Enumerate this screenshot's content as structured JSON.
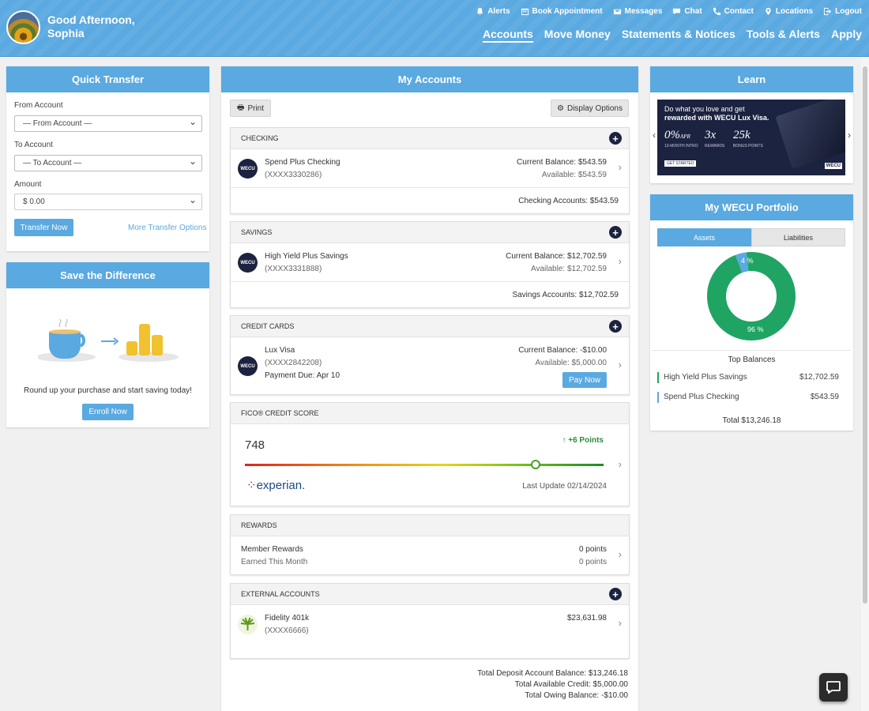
{
  "header": {
    "greeting_line1": "Good Afternoon,",
    "greeting_line2": "Sophia",
    "top_links": [
      {
        "label": "Alerts",
        "icon": "bell-icon"
      },
      {
        "label": "Book Appointment",
        "icon": "calendar-icon"
      },
      {
        "label": "Messages",
        "icon": "envelope-icon"
      },
      {
        "label": "Chat",
        "icon": "chat-icon"
      },
      {
        "label": "Contact",
        "icon": "phone-icon"
      },
      {
        "label": "Locations",
        "icon": "map-pin-icon"
      },
      {
        "label": "Logout",
        "icon": "logout-icon"
      }
    ],
    "nav": [
      "Accounts",
      "Move Money",
      "Statements & Notices",
      "Tools & Alerts",
      "Apply"
    ]
  },
  "quick_transfer": {
    "title": "Quick Transfer",
    "from_label": "From Account",
    "from_value": "— From Account —",
    "to_label": "To Account",
    "to_value": "— To Account —",
    "amount_label": "Amount",
    "amount_value": "$ 0.00",
    "transfer_button": "Transfer Now",
    "more_link": "More Transfer Options"
  },
  "save_difference": {
    "title": "Save the Difference",
    "text": "Round up your purchase and start saving today!",
    "button": "Enroll Now"
  },
  "accounts": {
    "title": "My Accounts",
    "print": "Print",
    "display_options": "Display Options",
    "checking": {
      "header": "CHECKING",
      "name": "Spend Plus Checking",
      "number": "(XXXX3330286)",
      "current": "Current Balance: $543.59",
      "available": "Available: $543.59",
      "total": "Checking Accounts: $543.59",
      "logo": "WECU"
    },
    "savings": {
      "header": "SAVINGS",
      "name": "High Yield Plus Savings",
      "number": "(XXXX3331888)",
      "current": "Current Balance: $12,702.59",
      "available": "Available: $12,702.59",
      "total": "Savings Accounts: $12,702.59",
      "logo": "WECU"
    },
    "credit": {
      "header": "CREDIT CARDS",
      "name": "Lux Visa",
      "number": "(XXXX2842208)",
      "due": "Payment Due: Apr 10",
      "current": "Current Balance: -$10.00",
      "available": "Available: $5,000.00",
      "pay": "Pay Now",
      "logo": "WECU"
    },
    "fico": {
      "header": "FICO® CREDIT SCORE",
      "score": "748",
      "change": "+6 Points",
      "updated": "Last Update 02/14/2024",
      "bureau": "experian.",
      "score_level": 0.81
    },
    "rewards": {
      "header": "REWARDS",
      "name": "Member Rewards",
      "sub": "Earned This Month",
      "points1": "0 points",
      "points2": "0 points"
    },
    "external": {
      "header": "EXTERNAL ACCOUNTS",
      "name": "Fidelity 401k",
      "number": "(XXXX6666)",
      "balance": "$23,631.98"
    },
    "totals": [
      "Total Deposit Account Balance: $13,246.18",
      "Total Available Credit: $5,000.00",
      "Total Owing Balance: -$10.00"
    ]
  },
  "learn": {
    "title": "Learn",
    "ad_line1": "Do what you love and get",
    "ad_line2": "rewarded with WECU Lux Visa.",
    "stat1": "0%",
    "stat1_sub": "APR",
    "stat1_note": "13-MONTH INTRO",
    "stat2": "3x",
    "stat2_note": "REWARDS",
    "stat3": "25k",
    "stat3_note": "BONUS POINTS",
    "cta": "GET STARTED",
    "brand": "WECU"
  },
  "portfolio": {
    "title": "My WECU Portfolio",
    "tabs": [
      "Assets",
      "Liabilities"
    ],
    "donut_small": "4 %",
    "donut_large": "96 %",
    "top_balances": "Top Balances",
    "items": [
      {
        "name": "High Yield Plus Savings",
        "value": "$12,702.59",
        "color": "#1fa463"
      },
      {
        "name": "Spend Plus Checking",
        "value": "$543.59",
        "color": "#5aa9e0"
      }
    ],
    "total": "Total $13,246.18"
  },
  "chart_data": {
    "type": "pie",
    "categories": [
      "High Yield Plus Savings",
      "Spend Plus Checking"
    ],
    "values": [
      96,
      4
    ]
  }
}
